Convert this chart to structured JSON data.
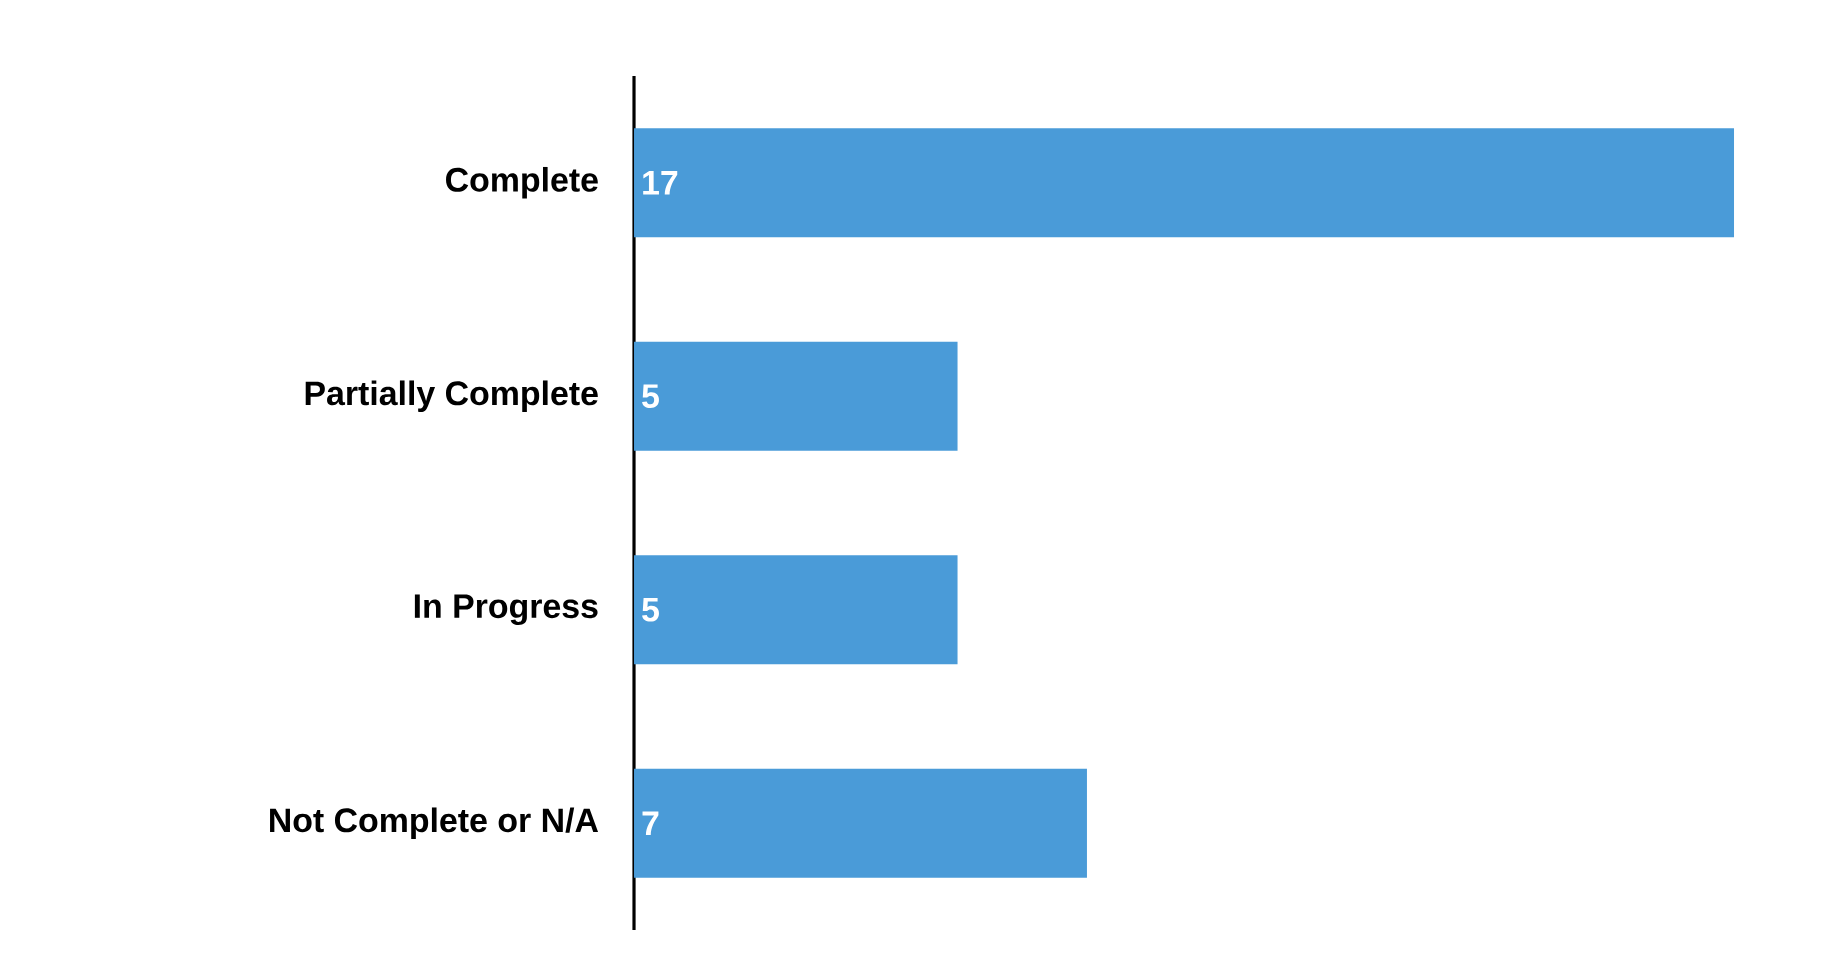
{
  "chart_data": {
    "type": "bar",
    "orientation": "horizontal",
    "categories": [
      "Complete",
      "Partially Complete",
      "In Progress",
      "Not Complete or N/A"
    ],
    "values": [
      17,
      5,
      5,
      7
    ],
    "color": "#4a9bd8",
    "data_labels": true,
    "tick_labels": "y"
  }
}
